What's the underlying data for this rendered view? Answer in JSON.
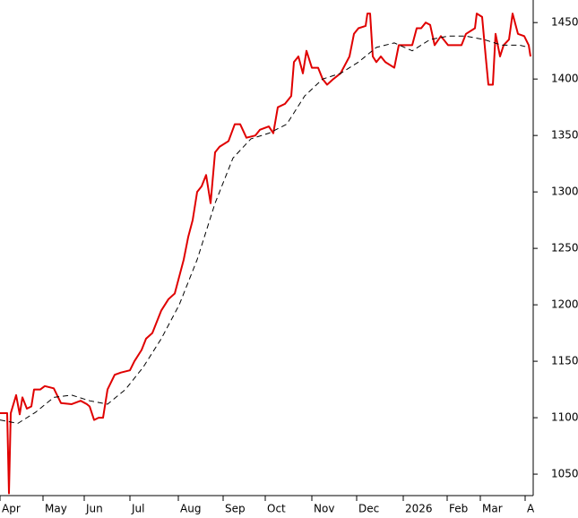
{
  "chart_data": {
    "type": "line",
    "xlim": [
      0,
      595
    ],
    "ylim": [
      1031,
      1470
    ],
    "yticks": [
      1050,
      1100,
      1150,
      1200,
      1250,
      1300,
      1350,
      1400,
      1450
    ],
    "xticks": [
      {
        "value": 0,
        "label": "Apr"
      },
      {
        "value": 48,
        "label": "May"
      },
      {
        "value": 94,
        "label": "Jun"
      },
      {
        "value": 145,
        "label": "Jul"
      },
      {
        "value": 199,
        "label": "Aug"
      },
      {
        "value": 249,
        "label": "Sep"
      },
      {
        "value": 296,
        "label": "Oct"
      },
      {
        "value": 348,
        "label": "Nov"
      },
      {
        "value": 398,
        "label": "Dec"
      },
      {
        "value": 450,
        "label": "2026"
      },
      {
        "value": 499,
        "label": "Feb"
      },
      {
        "value": 536,
        "label": "Mar"
      },
      {
        "value": 586,
        "label": "A"
      }
    ],
    "series": [
      {
        "color": "#e00000",
        "dashed": false,
        "x": [
          0,
          8,
          10,
          12,
          18,
          22,
          25,
          30,
          35,
          38,
          45,
          50,
          60,
          68,
          80,
          90,
          97,
          100,
          105,
          110,
          115,
          120,
          128,
          135,
          145,
          150,
          158,
          163,
          170,
          175,
          180,
          188,
          195,
          200,
          205,
          210,
          215,
          220,
          225,
          230,
          235,
          240,
          245,
          255,
          262,
          268,
          275,
          285,
          290,
          300,
          305,
          310,
          318,
          325,
          328,
          333,
          338,
          342,
          348,
          355,
          360,
          365,
          372,
          380,
          390,
          395,
          400,
          408,
          410,
          413,
          416,
          420,
          425,
          430,
          440,
          445,
          460,
          465,
          470,
          475,
          480,
          485,
          492,
          500,
          515,
          520,
          530,
          532,
          538,
          542,
          545,
          550,
          553,
          558,
          562,
          568,
          572,
          578,
          585,
          590,
          592
        ],
        "values": [
          1104,
          1104,
          1033,
          1104,
          1120,
          1103,
          1118,
          1108,
          1110,
          1125,
          1125,
          1128,
          1126,
          1113,
          1112,
          1115,
          1112,
          1110,
          1098,
          1100,
          1100,
          1125,
          1138,
          1140,
          1142,
          1150,
          1160,
          1170,
          1175,
          1185,
          1195,
          1205,
          1210,
          1225,
          1240,
          1260,
          1275,
          1300,
          1305,
          1315,
          1290,
          1335,
          1340,
          1345,
          1360,
          1360,
          1348,
          1350,
          1355,
          1358,
          1352,
          1375,
          1378,
          1385,
          1415,
          1420,
          1405,
          1425,
          1410,
          1410,
          1400,
          1395,
          1400,
          1405,
          1420,
          1440,
          1445,
          1447,
          1458,
          1458,
          1420,
          1415,
          1420,
          1415,
          1410,
          1430,
          1430,
          1445,
          1445,
          1450,
          1448,
          1430,
          1438,
          1430,
          1430,
          1440,
          1445,
          1458,
          1455,
          1420,
          1395,
          1395,
          1440,
          1420,
          1430,
          1435,
          1458,
          1440,
          1438,
          1430,
          1420
        ]
      },
      {
        "color": "#000000",
        "dashed": true,
        "x": [
          0,
          20,
          40,
          60,
          80,
          100,
          120,
          140,
          160,
          180,
          200,
          220,
          240,
          260,
          280,
          300,
          320,
          340,
          360,
          380,
          400,
          420,
          440,
          460,
          480,
          500,
          520,
          540,
          560,
          580,
          590
        ],
        "values": [
          1098,
          1095,
          1105,
          1118,
          1120,
          1115,
          1112,
          1125,
          1145,
          1170,
          1200,
          1240,
          1290,
          1330,
          1347,
          1352,
          1360,
          1385,
          1400,
          1405,
          1415,
          1428,
          1432,
          1425,
          1435,
          1438,
          1438,
          1435,
          1430,
          1430,
          1428
        ]
      }
    ]
  }
}
